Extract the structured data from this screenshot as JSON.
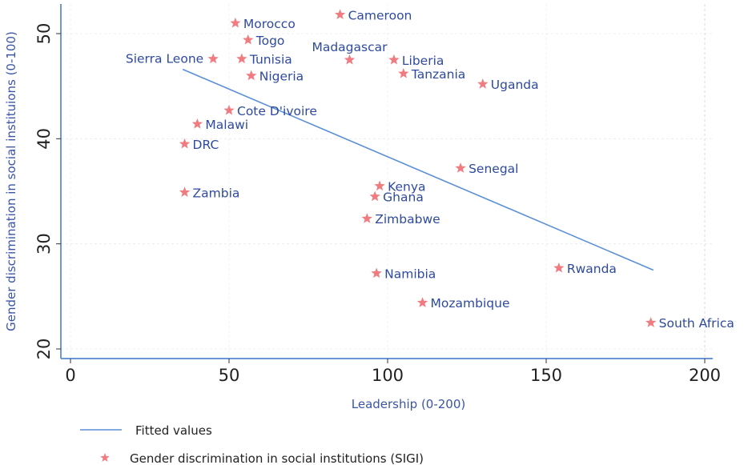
{
  "chart_data": {
    "type": "scatter",
    "title": "",
    "xlabel": "Leadership (0-200)",
    "ylabel": "Gender discrimination in social instituions (0-100)",
    "xlim": [
      -3,
      203
    ],
    "ylim": [
      19.2,
      53
    ],
    "xticks": [
      0,
      50,
      100,
      150,
      200
    ],
    "yticks": [
      20,
      30,
      40,
      50
    ],
    "grid": true,
    "legend_position": "bottom-left",
    "colors": {
      "marker": "#f07c82",
      "label": "#2e4a9e",
      "fit_line": "#5b8fd6",
      "axis": "#6b98d8"
    },
    "series": [
      {
        "name": "Gender discrimination in social institutions (SIGI)",
        "type": "scatter",
        "marker": "star",
        "points": [
          {
            "label": "Morocco",
            "x": 52,
            "y": 51.0,
            "label_side": "right"
          },
          {
            "label": "Cameroon",
            "x": 85,
            "y": 51.8,
            "label_side": "right"
          },
          {
            "label": "Togo",
            "x": 56,
            "y": 49.4,
            "label_side": "right"
          },
          {
            "label": "Sierra Leone",
            "x": 45,
            "y": 47.6,
            "label_side": "left"
          },
          {
            "label": "Tunisia",
            "x": 54,
            "y": 47.6,
            "label_side": "right"
          },
          {
            "label": "Madagascar",
            "x": 88,
            "y": 47.5,
            "label_side": "top"
          },
          {
            "label": "Liberia",
            "x": 102,
            "y": 47.5,
            "label_side": "right"
          },
          {
            "label": "Nigeria",
            "x": 57,
            "y": 46.0,
            "label_side": "right"
          },
          {
            "label": "Tanzania",
            "x": 105,
            "y": 46.2,
            "label_side": "right"
          },
          {
            "label": "Uganda",
            "x": 130,
            "y": 45.2,
            "label_side": "right"
          },
          {
            "label": "Cote D'ivoire",
            "x": 50,
            "y": 42.7,
            "label_side": "right"
          },
          {
            "label": "Malawi",
            "x": 40,
            "y": 41.4,
            "label_side": "right"
          },
          {
            "label": "DRC",
            "x": 36,
            "y": 39.5,
            "label_side": "right"
          },
          {
            "label": "Senegal",
            "x": 123,
            "y": 37.2,
            "label_side": "right"
          },
          {
            "label": "Zambia",
            "x": 36,
            "y": 34.9,
            "label_side": "right"
          },
          {
            "label": "Kenya",
            "x": 97.5,
            "y": 35.5,
            "label_side": "right"
          },
          {
            "label": "Ghana",
            "x": 96,
            "y": 34.5,
            "label_side": "right"
          },
          {
            "label": "Zimbabwe",
            "x": 93.5,
            "y": 32.4,
            "label_side": "right"
          },
          {
            "label": "Namibia",
            "x": 96.5,
            "y": 27.2,
            "label_side": "right"
          },
          {
            "label": "Rwanda",
            "x": 154,
            "y": 27.7,
            "label_side": "right"
          },
          {
            "label": "Mozambique",
            "x": 111,
            "y": 24.4,
            "label_side": "right"
          },
          {
            "label": "South Africa",
            "x": 183,
            "y": 22.5,
            "label_side": "right"
          }
        ]
      },
      {
        "name": "Fitted values",
        "type": "line",
        "x": [
          35.4,
          183.8
        ],
        "y": [
          46.6,
          27.5
        ]
      }
    ],
    "legend": [
      {
        "label": "Fitted values",
        "symbol": "line"
      },
      {
        "label": "Gender discrimination in social institutions (SIGI)",
        "symbol": "star"
      }
    ]
  }
}
